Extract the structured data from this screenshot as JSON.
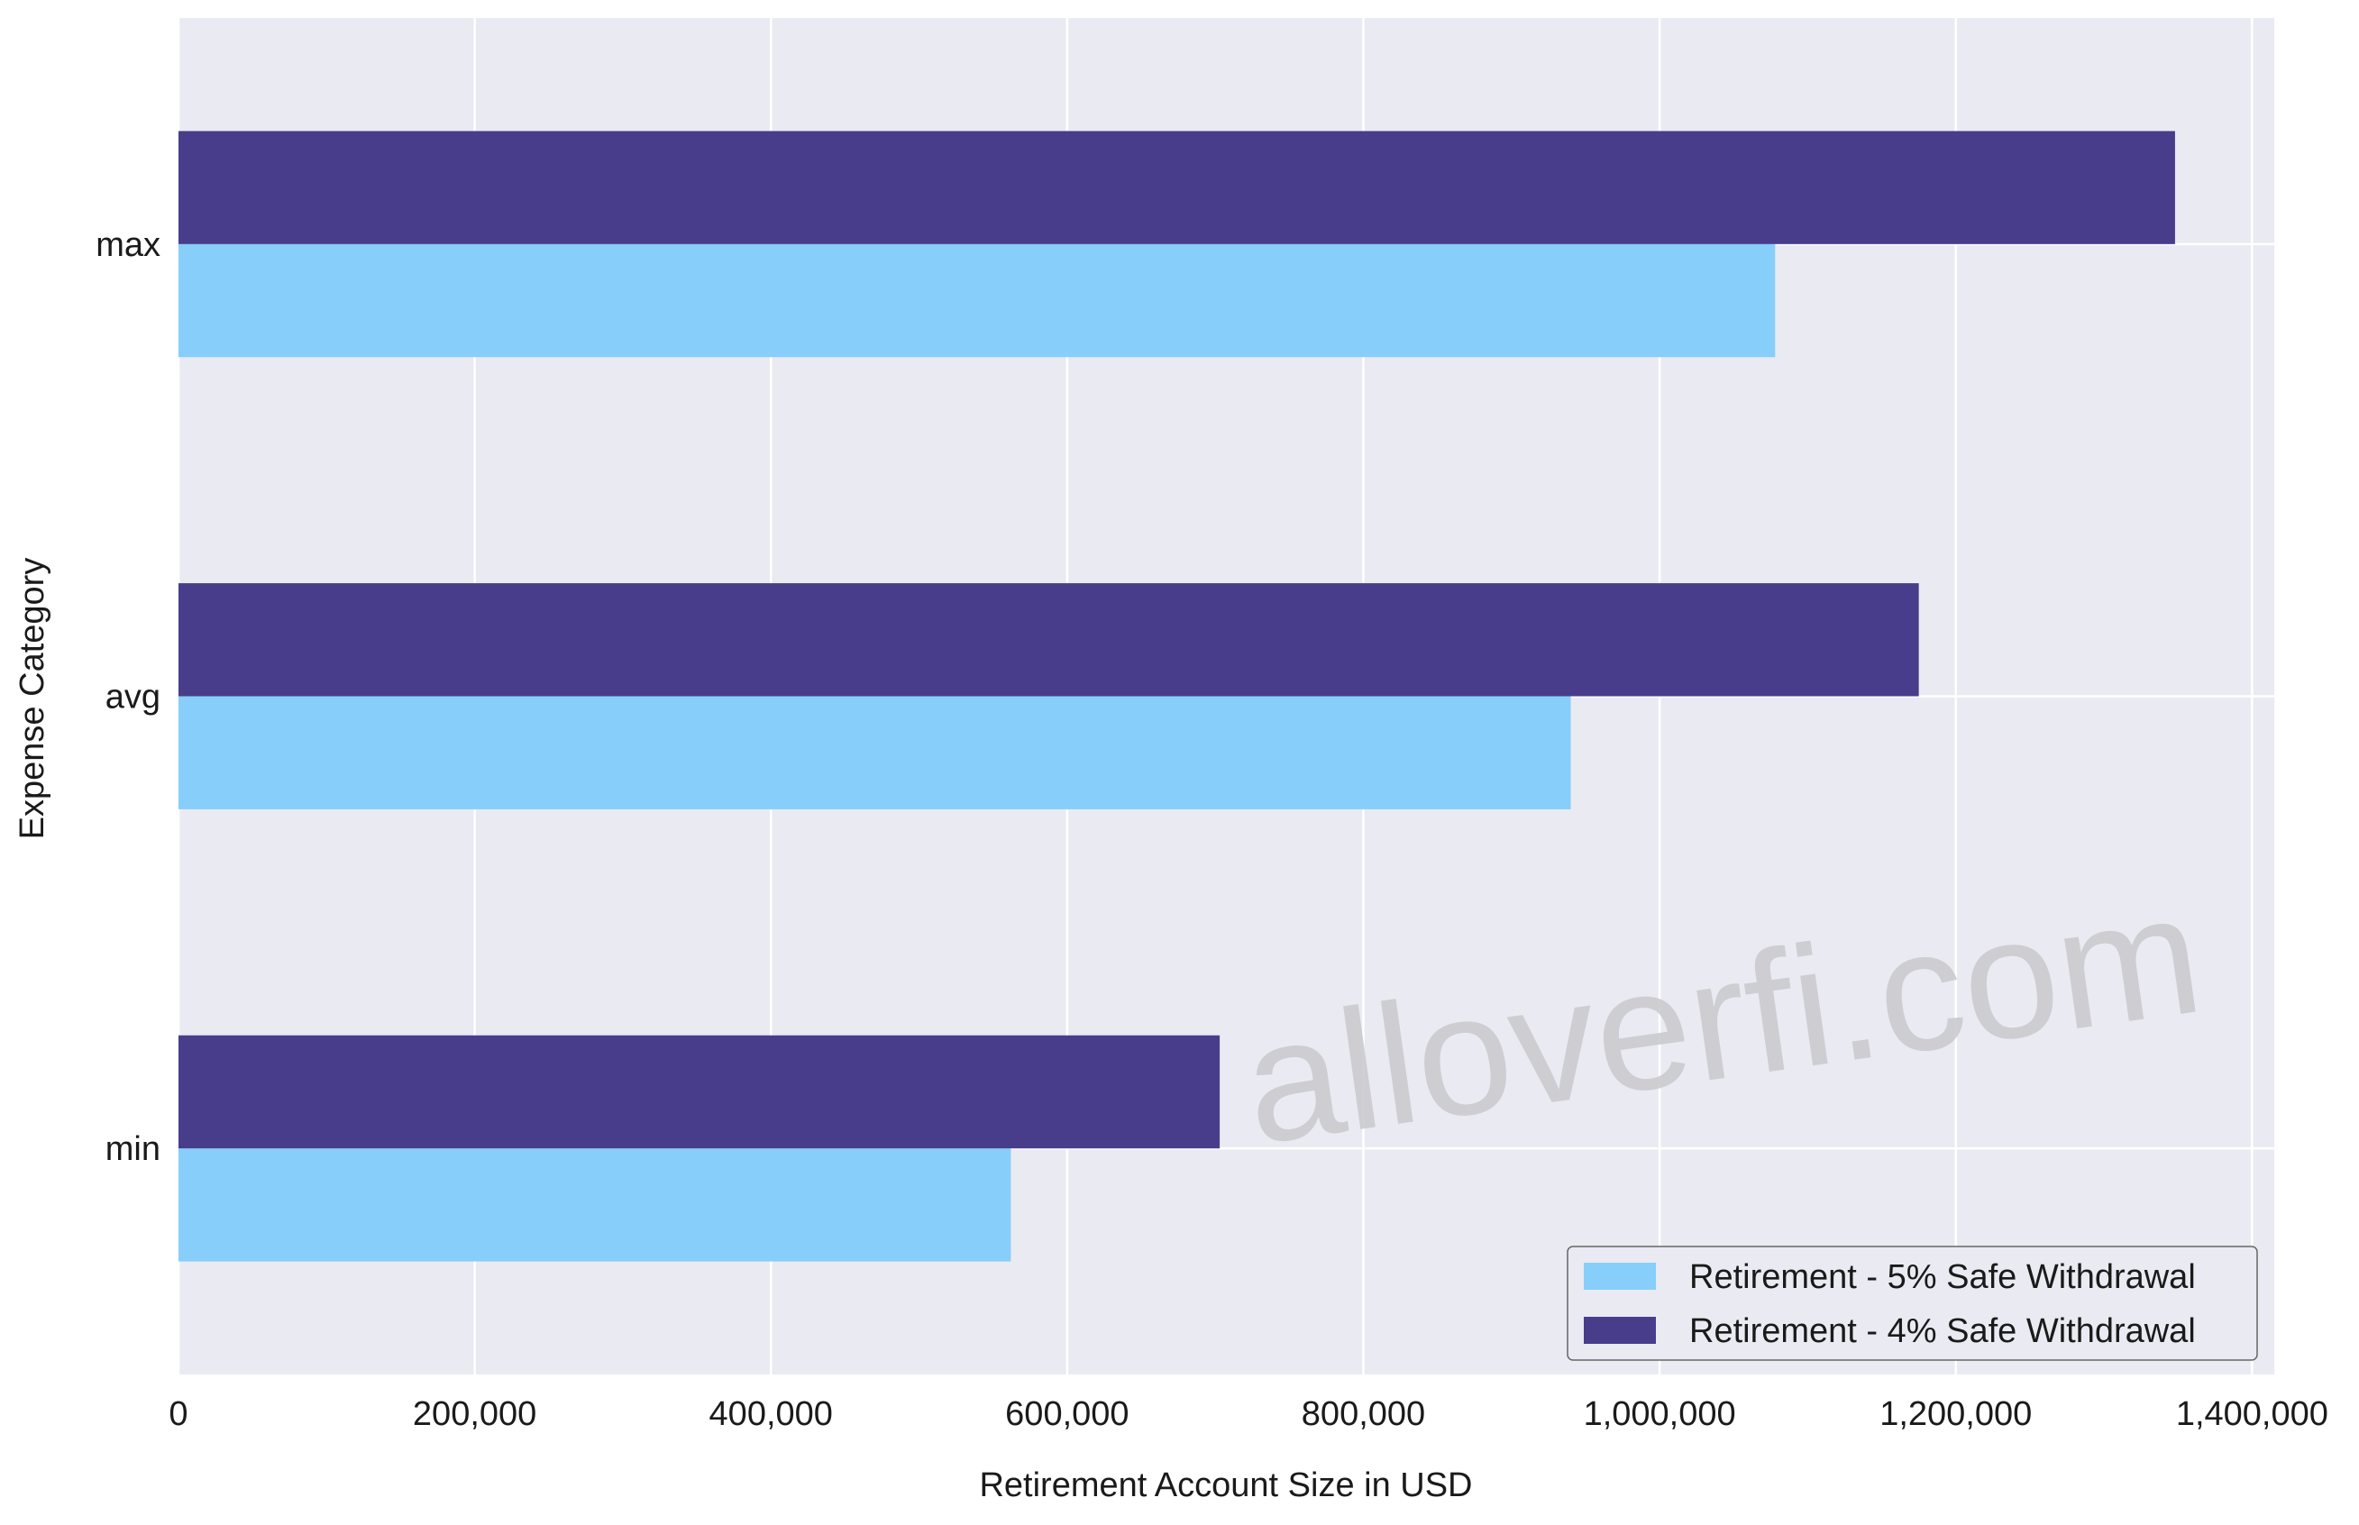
{
  "chart_data": {
    "type": "bar",
    "orientation": "horizontal",
    "categories": [
      "max",
      "avg",
      "min"
    ],
    "series": [
      {
        "name": "Retirement - 5% Safe Withdrawal",
        "color": "#87CEFA",
        "values": [
          1078000,
          940000,
          562000
        ]
      },
      {
        "name": "Retirement - 4% Safe Withdrawal",
        "color": "#483D8B",
        "values": [
          1348000,
          1175000,
          703000
        ]
      }
    ],
    "xlabel": "Retirement Account Size in USD",
    "ylabel": "Expense Category",
    "xlim": [
      0,
      1415000
    ],
    "x_ticks": [
      0,
      200000,
      400000,
      600000,
      800000,
      1000000,
      1200000,
      1400000
    ],
    "x_tick_labels": [
      "0",
      "200,000",
      "400,000",
      "600,000",
      "800,000",
      "1,000,000",
      "1,200,000",
      "1,400,000"
    ],
    "grid": true,
    "legend_position": "bottom-right",
    "background_color": "#EAEAF2",
    "watermark": "alloverfi.com"
  }
}
